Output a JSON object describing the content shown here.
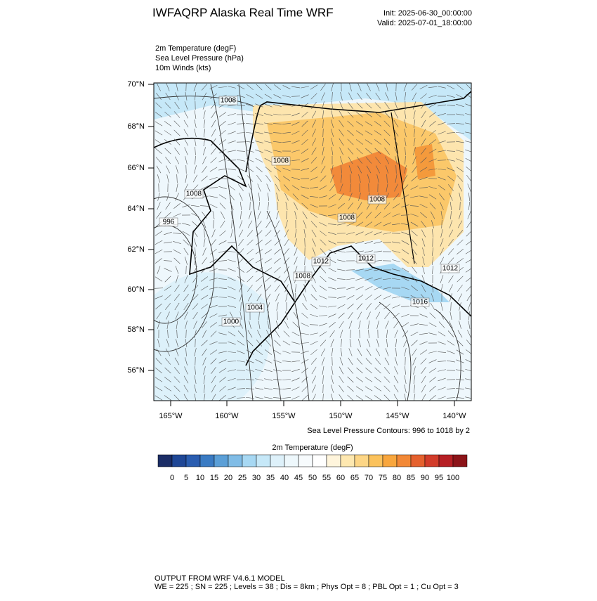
{
  "header": {
    "title": "IWFAQRP Alaska Real Time WRF",
    "init": "Init: 2025-06-30_00:00:00",
    "valid": "Valid: 2025-07-01_18:00:00"
  },
  "fields": [
    "2m Temperature   (degF)",
    "Sea Level Pressure   (hPa)",
    "10m Winds   (kts)"
  ],
  "map": {
    "lat_labels": [
      "70°N",
      "68°N",
      "66°N",
      "64°N",
      "62°N",
      "60°N",
      "58°N",
      "56°N"
    ],
    "lon_labels": [
      "165°W",
      "160°W",
      "155°W",
      "150°W",
      "145°W",
      "140°W"
    ],
    "contour_labels": [
      "1008",
      "1008",
      "1008",
      "996",
      "1008",
      "1008",
      "1012",
      "1012",
      "1008",
      "1012",
      "1016",
      "1004",
      "1000"
    ],
    "contour_note": "Sea Level Pressure Contours: 996 to 1018 by 2"
  },
  "colorbar": {
    "title": "2m Temperature  (degF)",
    "colors": [
      "#1b2d66",
      "#1f4796",
      "#2a5db0",
      "#3a7bc3",
      "#5b9fd7",
      "#80bce6",
      "#a7d8f3",
      "#c6e8f8",
      "#def1fa",
      "#eef8fc",
      "#f7fbfd",
      "#ffffff",
      "#fff5dc",
      "#fee8b0",
      "#fdd686",
      "#fbc25c",
      "#f8a63d",
      "#f28836",
      "#e5612e",
      "#d23c2a",
      "#b61f24",
      "#8c1419"
    ],
    "ticks": [
      0,
      5,
      10,
      15,
      20,
      25,
      30,
      35,
      40,
      45,
      50,
      55,
      60,
      65,
      70,
      75,
      80,
      85,
      90,
      95,
      100
    ]
  },
  "footer": {
    "line1": "OUTPUT FROM WRF V4.6.1 MODEL",
    "line2": "WE = 225 ; SN = 225 ; Levels = 38 ; Dis = 8km ; Phys Opt = 8 ; PBL Opt = 1 ; Cu Opt = 3"
  }
}
